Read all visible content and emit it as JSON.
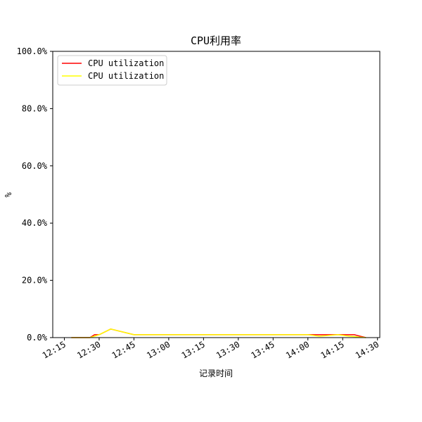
{
  "chart_data": {
    "type": "line",
    "title": "CPU利用率",
    "xlabel": "记录时间",
    "ylabel": "%",
    "y_tick_labels": [
      "0.0%",
      "20.0%",
      "40.0%",
      "60.0%",
      "80.0%",
      "100.0%"
    ],
    "y_ticks": [
      0,
      20,
      40,
      60,
      80,
      100
    ],
    "ylim": [
      0,
      100
    ],
    "x_tick_labels": [
      "12:15",
      "12:30",
      "12:45",
      "13:00",
      "13:15",
      "13:30",
      "13:45",
      "14:00",
      "14:15",
      "14:30"
    ],
    "x_ticks": [
      "12:15",
      "12:30",
      "12:45",
      "13:00",
      "13:15",
      "13:30",
      "13:45",
      "14:00",
      "14:15",
      "14:30"
    ],
    "xlim": [
      "12:10",
      "14:31"
    ],
    "grid": false,
    "legend_position": "upper-left",
    "series": [
      {
        "name": "CPU utilization",
        "color": "#ff0000",
        "x": [
          "12:18",
          "12:26",
          "12:28",
          "12:30",
          "12:35",
          "12:45",
          "13:00",
          "13:30",
          "14:00",
          "14:10",
          "14:15",
          "14:20",
          "14:25"
        ],
        "values": [
          0,
          0,
          1,
          1,
          3,
          1,
          1,
          1,
          1,
          1,
          1,
          1,
          0
        ]
      },
      {
        "name": "CPU utilization",
        "color": "#ffff00",
        "x": [
          "12:18",
          "12:26",
          "12:28",
          "12:30",
          "12:35",
          "12:45",
          "13:00",
          "13:30",
          "14:00",
          "14:05",
          "14:13",
          "14:18",
          "14:25"
        ],
        "values": [
          0,
          0,
          0.5,
          1,
          3,
          1,
          1,
          1,
          1,
          0.5,
          1,
          0.5,
          0
        ]
      }
    ]
  }
}
